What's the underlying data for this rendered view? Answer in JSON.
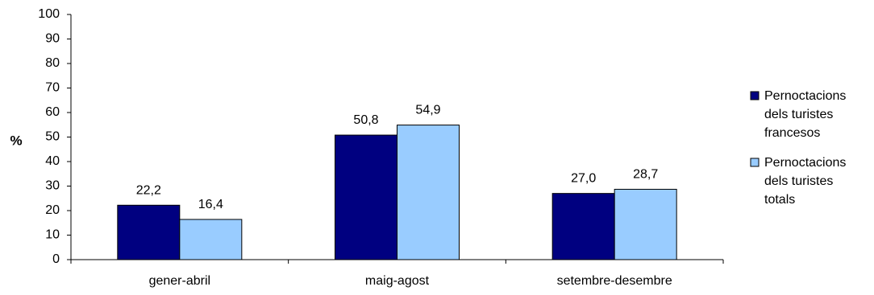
{
  "chart_data": {
    "type": "bar",
    "ylabel": "%",
    "xlabel": "",
    "ylim": [
      0,
      100
    ],
    "yticks": [
      0,
      10,
      20,
      30,
      40,
      50,
      60,
      70,
      80,
      90,
      100
    ],
    "categories": [
      "gener-abril",
      "maig-agost",
      "setembre-desembre"
    ],
    "series": [
      {
        "name": "Pernoctacions dels turistes francesos",
        "name_lines": [
          "Pernoctacions",
          "dels turistes",
          "francesos"
        ],
        "color": "#000080",
        "values": [
          22.2,
          50.8,
          27.0
        ],
        "labels": [
          "22,2",
          "50,8",
          "27,0"
        ]
      },
      {
        "name": "Pernoctacions dels turistes totals",
        "name_lines": [
          "Pernoctacions",
          "dels turistes",
          "totals"
        ],
        "color": "#99ccff",
        "values": [
          16.4,
          54.9,
          28.7
        ],
        "labels": [
          "16,4",
          "54,9",
          "28,7"
        ]
      }
    ],
    "legend_position": "right",
    "grid": false
  }
}
